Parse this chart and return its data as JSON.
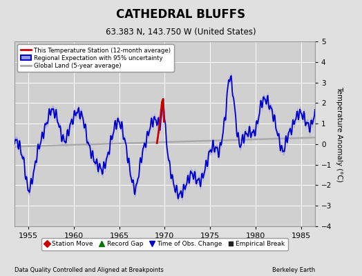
{
  "title": "CATHEDRAL BLUFFS",
  "subtitle": "63.383 N, 143.750 W (United States)",
  "ylabel": "Temperature Anomaly (°C)",
  "xlabel_left": "Data Quality Controlled and Aligned at Breakpoints",
  "xlabel_right": "Berkeley Earth",
  "xlim": [
    1953.5,
    1986.5
  ],
  "ylim": [
    -4,
    5
  ],
  "yticks": [
    -4,
    -3,
    -2,
    -1,
    0,
    1,
    2,
    3,
    4,
    5
  ],
  "xticks": [
    1955,
    1960,
    1965,
    1970,
    1975,
    1980,
    1985
  ],
  "bg_color": "#e0e0e0",
  "plot_bg_color": "#d0d0d0",
  "grid_color": "#ffffff",
  "blue_line_color": "#0000cc",
  "blue_fill_color": "#9999dd",
  "red_line_color": "#cc0000",
  "gray_line_color": "#aaaaaa",
  "legend_items": [
    {
      "label": "This Temperature Station (12-month average)"
    },
    {
      "label": "Regional Expectation with 95% uncertainty"
    },
    {
      "label": "Global Land (5-year average)"
    }
  ],
  "bottom_legend": [
    {
      "label": "Station Move",
      "marker": "D",
      "color": "#cc0000"
    },
    {
      "label": "Record Gap",
      "marker": "^",
      "color": "#007700"
    },
    {
      "label": "Time of Obs. Change",
      "marker": "v",
      "color": "#0000cc"
    },
    {
      "label": "Empirical Break",
      "marker": "s",
      "color": "#222222"
    }
  ],
  "reg_keys_t": [
    1953.5,
    1954.0,
    1954.5,
    1955.0,
    1955.3,
    1955.7,
    1956.0,
    1956.5,
    1957.0,
    1957.5,
    1958.0,
    1958.3,
    1958.6,
    1959.0,
    1959.3,
    1959.6,
    1960.0,
    1960.3,
    1960.7,
    1961.0,
    1961.3,
    1961.6,
    1962.0,
    1962.4,
    1962.8,
    1963.2,
    1963.5,
    1963.8,
    1964.0,
    1964.3,
    1964.6,
    1965.0,
    1965.3,
    1965.7,
    1966.0,
    1966.4,
    1966.8,
    1967.0,
    1967.3,
    1967.6,
    1968.0,
    1968.3,
    1968.6,
    1969.0,
    1969.3,
    1969.5,
    1969.7,
    1969.9,
    1970.0,
    1970.1,
    1970.3,
    1970.5,
    1970.8,
    1971.0,
    1971.3,
    1971.6,
    1972.0,
    1972.3,
    1972.7,
    1973.0,
    1973.3,
    1973.6,
    1974.0,
    1974.3,
    1974.7,
    1975.0,
    1975.3,
    1975.6,
    1976.0,
    1976.3,
    1976.7,
    1977.0,
    1977.2,
    1977.5,
    1977.8,
    1978.0,
    1978.3,
    1978.6,
    1979.0,
    1979.3,
    1979.7,
    1980.0,
    1980.3,
    1980.6,
    1981.0,
    1981.3,
    1981.6,
    1982.0,
    1982.4,
    1982.8,
    1983.0,
    1983.3,
    1983.6,
    1984.0,
    1984.3,
    1984.7,
    1985.0,
    1985.3,
    1985.6,
    1986.0,
    1986.5
  ],
  "reg_keys_v": [
    0.2,
    0.0,
    -0.8,
    -2.3,
    -2.0,
    -1.2,
    -0.4,
    0.3,
    1.0,
    1.7,
    1.5,
    1.1,
    0.5,
    0.1,
    0.4,
    0.9,
    1.3,
    1.6,
    1.5,
    1.3,
    0.7,
    0.0,
    -0.5,
    -0.9,
    -1.1,
    -1.3,
    -0.9,
    -0.5,
    0.0,
    0.5,
    1.0,
    1.1,
    0.8,
    0.0,
    -0.8,
    -1.8,
    -2.3,
    -1.8,
    -1.0,
    -0.3,
    0.2,
    0.7,
    1.1,
    1.2,
    1.0,
    0.9,
    1.5,
    2.2,
    1.1,
    0.6,
    -0.3,
    -1.0,
    -1.6,
    -2.0,
    -2.3,
    -2.5,
    -2.3,
    -2.0,
    -1.6,
    -1.4,
    -1.6,
    -1.8,
    -1.8,
    -1.4,
    -0.8,
    -0.3,
    -0.1,
    -0.2,
    -0.4,
    0.3,
    1.5,
    3.1,
    3.3,
    2.5,
    1.2,
    0.4,
    -0.1,
    0.3,
    0.5,
    0.6,
    0.5,
    0.7,
    1.3,
    2.0,
    2.2,
    2.1,
    1.8,
    1.3,
    0.5,
    -0.2,
    -0.4,
    0.1,
    0.5,
    0.8,
    1.2,
    1.5,
    1.5,
    1.3,
    1.0,
    0.8,
    1.5
  ],
  "red_t": [
    1969.15,
    1969.25,
    1969.4,
    1969.55,
    1969.7,
    1969.83,
    1969.92
  ],
  "red_v": [
    0.05,
    0.35,
    0.85,
    1.4,
    2.05,
    2.2,
    1.1
  ],
  "global_t": [
    1953.5,
    1986.5
  ],
  "global_v": [
    -0.12,
    0.32
  ]
}
